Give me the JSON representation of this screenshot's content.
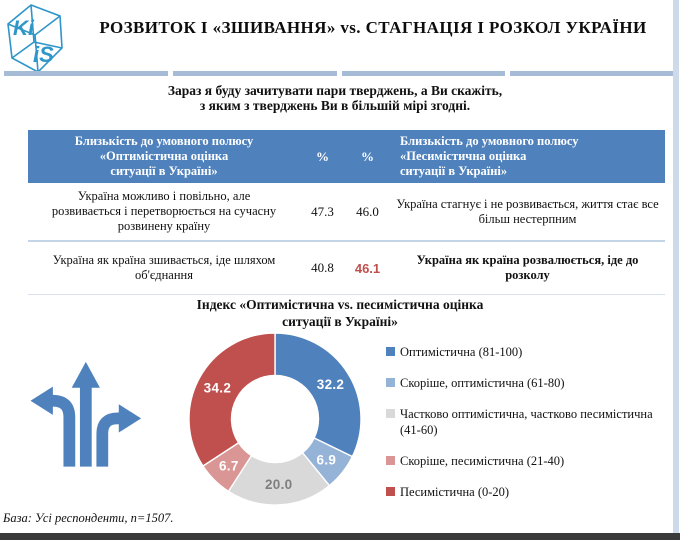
{
  "header": {
    "title": "РОЗВИТОК І «ЗШИВАННЯ» vs. СТАГНАЦІЯ І РОЗКОЛ УКРАЇНИ",
    "logo": {
      "top_text": "Ki",
      "side_text": "iS"
    }
  },
  "intro": {
    "line1": "Зараз я буду зачитувати пари тверджень, а Ви скажіть,",
    "line2": "з яким з тверджень Ви в більшій мірі згодні."
  },
  "table": {
    "header": {
      "left_lines": [
        "Близькість до умовного полюсу",
        "«Оптимістична оцінка",
        "ситуації в Україні»"
      ],
      "pct1": "%",
      "pct2": "%",
      "right_lines": [
        "Близькість до умовного полюсу",
        "«Песимістична оцінка",
        "ситуації в Україні»"
      ]
    },
    "rows": [
      {
        "left": "Україна можливо і повільно, але розвивається і перетворюється на сучасну розвинену країну",
        "pct_left": "47.3",
        "pct_right": "46.0",
        "right": "Україна стагнує і не розвивається, життя стає все більш нестерпним"
      },
      {
        "left": "Україна як країна зшивається, іде шляхом об'єднання",
        "pct_left": "40.8",
        "pct_right": "46.1",
        "right": "Україна як країна розвалюється, іде до розколу"
      }
    ]
  },
  "chart_data": {
    "type": "pie",
    "subtype": "donut",
    "title": "Індекс «Оптимістична vs. песимістична оцінка ситуації в Україні»",
    "title_lines": [
      "Індекс «Оптимістична vs. песимістична оцінка",
      "ситуації в Україні»"
    ],
    "values": [
      32.2,
      6.9,
      20.0,
      6.7,
      34.2
    ],
    "labels": [
      "32.2",
      "6.9",
      "20.0",
      "6.7",
      "34.2"
    ],
    "legend": [
      "Оптимістична (81-100)",
      "Скоріше, оптимістична (61-80)",
      "Частково оптимістична, частково песимістична (41-60)",
      "Скоріше, песимістична (21-40)",
      "Песимістична (0-20)"
    ],
    "colors": [
      "#4f81bd",
      "#95b3d7",
      "#d9d9d9",
      "#d99694",
      "#c0504d"
    ],
    "label_colors": [
      "#ffffff",
      "#ffffff",
      "#7f7f7f",
      "#ffffff",
      "#ffffff"
    ],
    "legend_position": "right",
    "start_angle_deg": 0,
    "direction": "clockwise"
  },
  "footer": {
    "base_note": "База: Усі респонденти, n=1507."
  },
  "colors": {
    "table_header_blue": "#4f81bd",
    "accent_red": "#c0504d",
    "divider_blue": "#a6bbd6",
    "row_separator": "#c4d5e8",
    "logo_blue": "#2e96c8",
    "arrow_blue": "#4f81bd",
    "side_strip": "#ccdaea",
    "bottom_bar": "#3a3a3a"
  }
}
